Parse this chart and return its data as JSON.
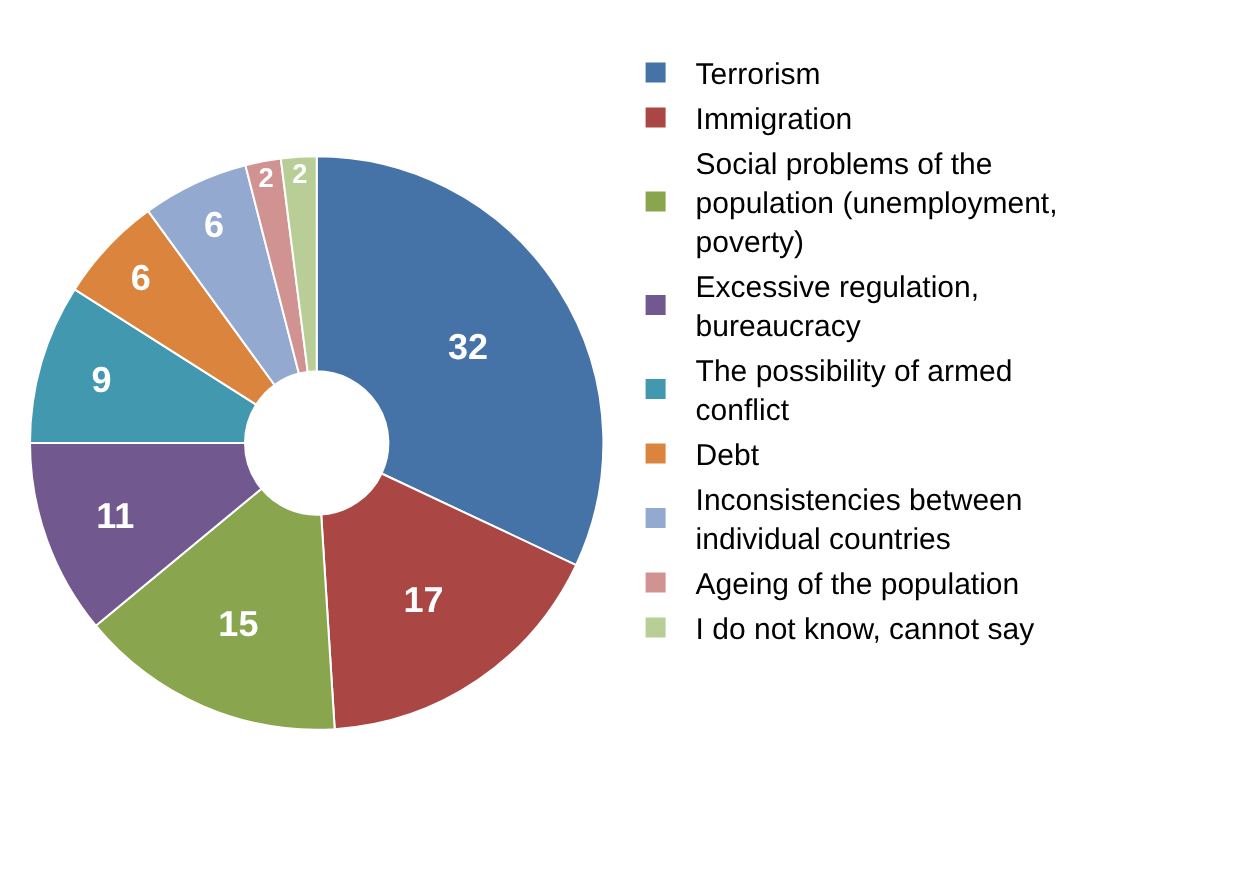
{
  "chart_data": {
    "type": "donut",
    "categories": [
      "Terrorism",
      "Immigration",
      "Social problems of the population (unemployment, poverty)",
      "Excessive regulation, bureaucracy",
      "The possibility of armed conflict",
      "Debt",
      "Inconsistencies between individual countries",
      "Ageing of the population",
      "I do not know, cannot say"
    ],
    "values": [
      32,
      17,
      15,
      11,
      9,
      6,
      6,
      2,
      2
    ],
    "colors": [
      "#4572a7",
      "#aa4643",
      "#89a54e",
      "#71588f",
      "#4198af",
      "#db843d",
      "#93a9cf",
      "#d19392",
      "#b9cd96"
    ],
    "data_labels": true,
    "legend": "right"
  }
}
